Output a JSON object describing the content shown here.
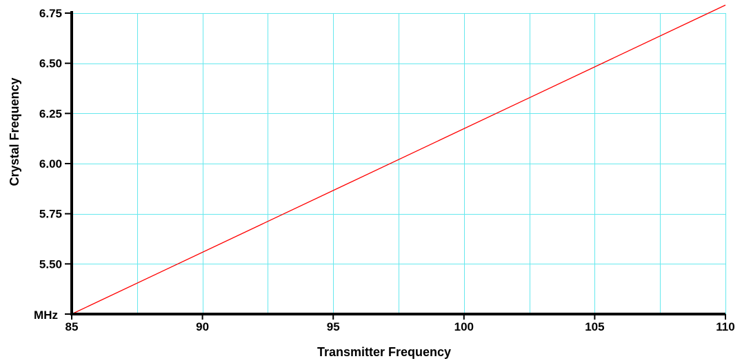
{
  "chart_data": {
    "type": "line",
    "title": "",
    "xlabel": "Transmitter Frequency",
    "ylabel": "Crystal Frequency",
    "y_unit_label": "MHz",
    "xlim": [
      85,
      110
    ],
    "ylim": [
      5.25,
      6.75
    ],
    "x_ticks": [
      {
        "value": 85,
        "label": "85"
      },
      {
        "value": 90,
        "label": "90"
      },
      {
        "value": 95,
        "label": "95"
      },
      {
        "value": 100,
        "label": "100"
      },
      {
        "value": 105,
        "label": "105"
      },
      {
        "value": 110,
        "label": "110"
      }
    ],
    "y_ticks": [
      {
        "value": 5.5,
        "label": "5.50"
      },
      {
        "value": 5.75,
        "label": "5.75"
      },
      {
        "value": 6.0,
        "label": "6.00"
      },
      {
        "value": 6.25,
        "label": "6.25"
      },
      {
        "value": 6.5,
        "label": "6.50"
      },
      {
        "value": 6.75,
        "label": "6.75"
      }
    ],
    "x_grid": [
      85,
      87.5,
      90,
      92.5,
      95,
      97.5,
      100,
      102.5,
      105,
      107.5,
      110
    ],
    "y_grid": [
      5.25,
      5.5,
      5.75,
      6.0,
      6.25,
      6.5,
      6.75
    ],
    "grid": true,
    "series": [
      {
        "color": "#ff0000",
        "x": [
          85,
          110
        ],
        "y": [
          5.25,
          6.79
        ]
      }
    ],
    "colors": {
      "grid": "#66e8ee",
      "axis": "#000000",
      "line": "#ff0000",
      "background": "#ffffff"
    }
  }
}
